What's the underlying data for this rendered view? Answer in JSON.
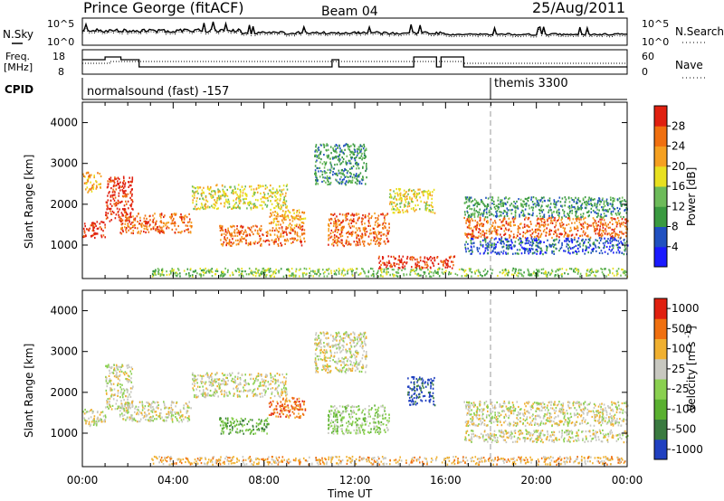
{
  "header": {
    "station": "Prince George (fitACF)",
    "beam": "Beam 04",
    "date": "25/Aug/2011"
  },
  "strip1": {
    "left_label": "N.Sky",
    "right_label": "N.Search",
    "left_ticks": [
      "10^5",
      "10^0"
    ],
    "right_ticks": [
      "10^5",
      "10^0"
    ]
  },
  "strip2": {
    "left_label_1": "Freq.",
    "left_label_2": "[MHz]",
    "right_label": "Nave",
    "left_ticks": [
      "18",
      "8"
    ],
    "right_ticks": [
      "60",
      "0"
    ]
  },
  "cpid": {
    "label": "CPID",
    "mode_1": "normalsound (fast) -157",
    "mode_2": "themis 3300"
  },
  "chart_data": [
    {
      "type": "heatmap",
      "title": "",
      "xlabel": "",
      "ylabel": "Slant Range [km]",
      "xlim": [
        0,
        24
      ],
      "ylim": [
        180,
        4500
      ],
      "yticks": [
        "1000",
        "2000",
        "3000",
        "4000"
      ],
      "colorbar": {
        "label": "Power [dB]",
        "ticks": [
          "4",
          "8",
          "12",
          "16",
          "20",
          "24",
          "28"
        ],
        "colors": [
          "#1a1aff",
          "#2050c0",
          "#3a9a40",
          "#6dbb5a",
          "#e8e020",
          "#f5a020",
          "#f07010",
          "#e02010"
        ]
      },
      "scatter_bands": [
        {
          "t0": 0.0,
          "t1": 1.0,
          "r0": 1200,
          "r1": 1600,
          "level": 7
        },
        {
          "t0": 0.0,
          "t1": 0.8,
          "r0": 2300,
          "r1": 2800,
          "level": 5
        },
        {
          "t0": 1.0,
          "t1": 2.2,
          "r0": 1600,
          "r1": 2700,
          "level": 7
        },
        {
          "t0": 1.6,
          "t1": 4.8,
          "r0": 1300,
          "r1": 1800,
          "level": 6
        },
        {
          "t0": 4.8,
          "t1": 9.0,
          "r0": 1900,
          "r1": 2500,
          "level": 4
        },
        {
          "t0": 6.0,
          "t1": 9.8,
          "r0": 1000,
          "r1": 1500,
          "level": 6
        },
        {
          "t0": 8.2,
          "t1": 9.8,
          "r0": 1500,
          "r1": 1900,
          "level": 5
        },
        {
          "t0": 10.2,
          "t1": 12.5,
          "r0": 2500,
          "r1": 3500,
          "level": 2
        },
        {
          "t0": 10.8,
          "t1": 13.5,
          "r0": 1000,
          "r1": 1800,
          "level": 6
        },
        {
          "t0": 13.5,
          "t1": 15.5,
          "r0": 1800,
          "r1": 2400,
          "level": 4
        },
        {
          "t0": 13.0,
          "t1": 16.4,
          "r0": 450,
          "r1": 750,
          "level": 7
        },
        {
          "t0": 16.8,
          "t1": 24.0,
          "r0": 1200,
          "r1": 1700,
          "level": 6
        },
        {
          "t0": 16.8,
          "t1": 24.0,
          "r0": 800,
          "r1": 1200,
          "level": 1
        },
        {
          "t0": 16.8,
          "t1": 24.0,
          "r0": 1700,
          "r1": 2200,
          "level": 2
        },
        {
          "t0": 3.0,
          "t1": 24.0,
          "r0": 250,
          "r1": 450,
          "level": 3
        }
      ]
    },
    {
      "type": "heatmap",
      "title": "",
      "xlabel": "Time UT",
      "ylabel": "Slant Range [km]",
      "xlim": [
        0,
        24
      ],
      "ylim": [
        180,
        4500
      ],
      "xticks": [
        "00:00",
        "04:00",
        "08:00",
        "12:00",
        "16:00",
        "20:00",
        "00:00"
      ],
      "yticks": [
        "1000",
        "2000",
        "3000",
        "4000"
      ],
      "colorbar": {
        "label": "Velocity [m s^-1]",
        "ticks": [
          "1000",
          "500",
          "100",
          "25",
          "-25",
          "-100",
          "-500",
          "-1000"
        ],
        "colors": [
          "#2040c0",
          "#3a7a40",
          "#5ab030",
          "#8ad050",
          "#c8c8c0",
          "#f0b030",
          "#f07010",
          "#e02010"
        ]
      },
      "scatter_bands": [
        {
          "t0": 0.0,
          "t1": 1.0,
          "r0": 1200,
          "r1": 1600,
          "level": 4
        },
        {
          "t0": 1.0,
          "t1": 2.2,
          "r0": 1600,
          "r1": 2700,
          "level": 4
        },
        {
          "t0": 1.6,
          "t1": 4.8,
          "r0": 1300,
          "r1": 1800,
          "level": 4
        },
        {
          "t0": 4.8,
          "t1": 9.0,
          "r0": 1900,
          "r1": 2500,
          "level": 4
        },
        {
          "t0": 6.0,
          "t1": 8.2,
          "r0": 1000,
          "r1": 1400,
          "level": 2
        },
        {
          "t0": 8.2,
          "t1": 9.8,
          "r0": 1400,
          "r1": 1900,
          "level": 6
        },
        {
          "t0": 10.2,
          "t1": 12.5,
          "r0": 2500,
          "r1": 3500,
          "level": 4
        },
        {
          "t0": 10.8,
          "t1": 13.5,
          "r0": 1000,
          "r1": 1700,
          "level": 3
        },
        {
          "t0": 14.3,
          "t1": 15.5,
          "r0": 1700,
          "r1": 2400,
          "level": 0
        },
        {
          "t0": 16.8,
          "t1": 24.0,
          "r0": 1200,
          "r1": 1800,
          "level": 4
        },
        {
          "t0": 16.8,
          "t1": 24.0,
          "r0": 800,
          "r1": 1100,
          "level": 4
        },
        {
          "t0": 3.0,
          "t1": 24.0,
          "r0": 250,
          "r1": 450,
          "level": 5
        }
      ]
    }
  ],
  "styles": {
    "axis_color": "#000000",
    "dashed_marker_color": "#999999"
  }
}
